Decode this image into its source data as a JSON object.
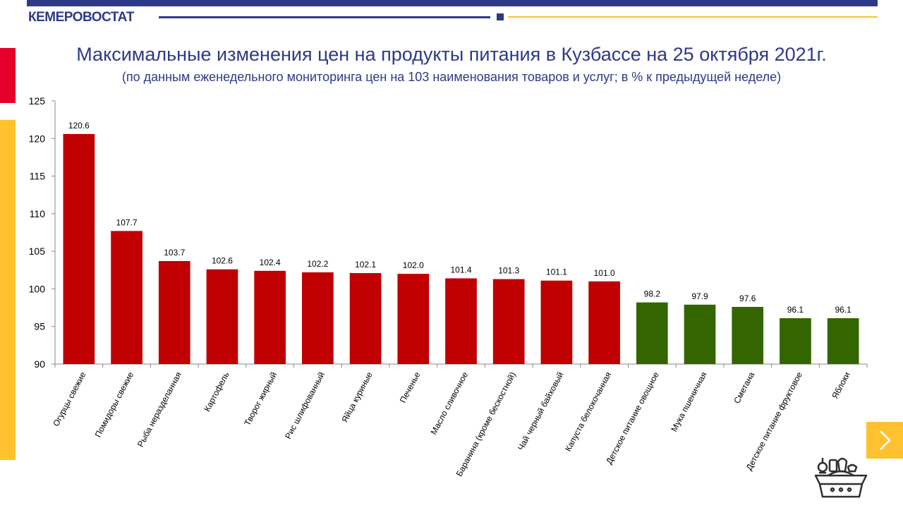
{
  "header": {
    "brand": "КЕМЕРОВОСТАТ"
  },
  "title": "Максимальные изменения цен на продукты питания в Кузбассе на 25 октября 2021г.",
  "subtitle": "(по данным еженедельного мониторинга цен на 103 наименования товаров и услуг; в % к предыдущей неделе)",
  "colors": {
    "brand_blue": "#2e3a87",
    "accent_yellow": "#ffc22e",
    "accent_red": "#e4002b",
    "bar_increase": "#c00000",
    "bar_decrease": "#336600"
  },
  "icons": {
    "next": "chevron-right-icon",
    "decor": "food-basket-icon"
  },
  "chart_data": {
    "type": "bar",
    "categories": [
      "Огурцы свежие",
      "Помидоры свежие",
      "Рыба неразделанная",
      "Картофель",
      "Творог жирный",
      "Рис шлифованный",
      "Яйца куриные",
      "Печенье",
      "Масло сливочное",
      "Баранина (кроме бескостной)",
      "Чай черный байховый",
      "Капуста белокочанная",
      "Детское питание овощное",
      "Мука пшеничная",
      "Сметана",
      "Детское питание фруктовое",
      "Яблоки"
    ],
    "values": [
      120.6,
      107.7,
      103.7,
      102.6,
      102.4,
      102.2,
      102.1,
      102.0,
      101.4,
      101.3,
      101.1,
      101.0,
      98.2,
      97.9,
      97.6,
      96.1,
      96.1
    ],
    "value_labels": [
      "120.6",
      "107.7",
      "103.7",
      "102.6",
      "102.4",
      "102.2",
      "102.1",
      "102.0",
      "101.4",
      "101.3",
      "101.1",
      "101.0",
      "98.2",
      "97.9",
      "97.6",
      "96.1",
      "96.1"
    ],
    "ylim": [
      90,
      125
    ],
    "yticks": [
      90,
      95,
      100,
      105,
      110,
      115,
      120,
      125
    ],
    "grid": false,
    "legend": "none",
    "xlabel": "",
    "ylabel": ""
  }
}
